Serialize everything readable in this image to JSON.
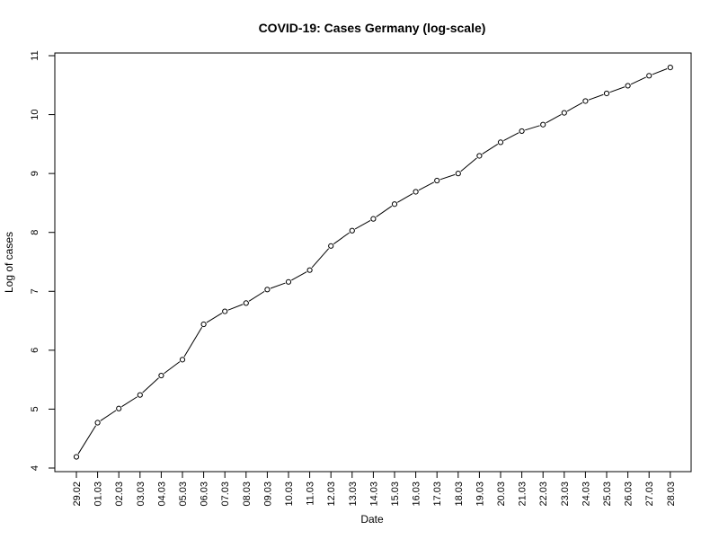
{
  "chart_data": {
    "type": "line",
    "title": "COVID-19: Cases Germany (log-scale)",
    "xlabel": "Date",
    "ylabel": "Log of cases",
    "categories": [
      "29.02",
      "01.03",
      "02.03",
      "03.03",
      "04.03",
      "05.03",
      "06.03",
      "07.03",
      "08.03",
      "09.03",
      "10.03",
      "11.03",
      "12.03",
      "13.03",
      "14.03",
      "15.03",
      "16.03",
      "17.03",
      "18.03",
      "19.03",
      "20.03",
      "21.03",
      "22.03",
      "23.03",
      "24.03",
      "25.03",
      "26.03",
      "27.03",
      "28.03"
    ],
    "series": [
      {
        "values": [
          4.19,
          4.77,
          5.01,
          5.24,
          5.57,
          5.84,
          6.44,
          6.66,
          6.8,
          7.03,
          7.16,
          7.36,
          7.77,
          8.03,
          8.23,
          8.48,
          8.69,
          8.88,
          9.0,
          9.3,
          9.53,
          9.72,
          9.83,
          10.03,
          10.23,
          10.36,
          10.49,
          10.66,
          10.8
        ]
      }
    ],
    "yticks": [
      "4",
      "5",
      "6",
      "7",
      "8",
      "9",
      "10",
      "11"
    ],
    "ylim": [
      4,
      11
    ],
    "grid": false,
    "line_color": "#000000",
    "marker": "open-circle"
  }
}
